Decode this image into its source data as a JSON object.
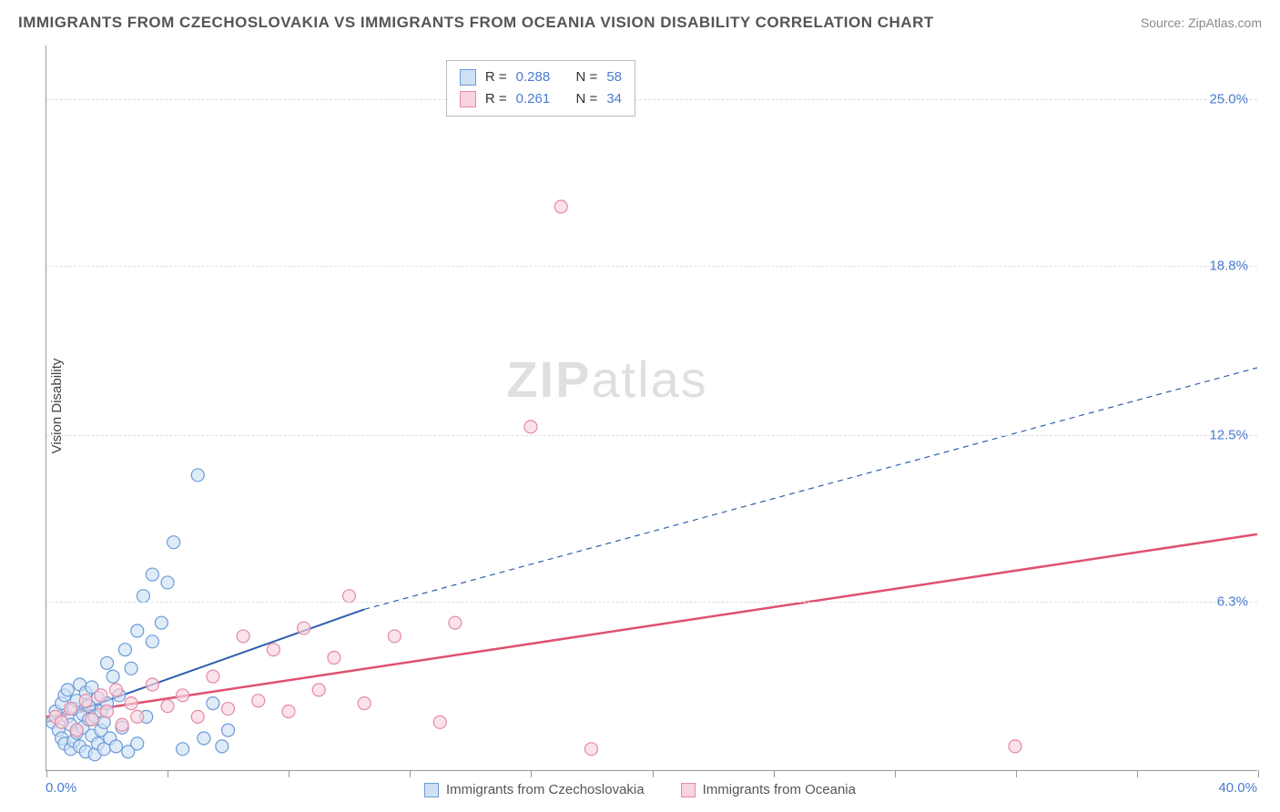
{
  "header": {
    "title": "IMMIGRANTS FROM CZECHOSLOVAKIA VS IMMIGRANTS FROM OCEANIA VISION DISABILITY CORRELATION CHART",
    "source": "Source: ZipAtlas.com"
  },
  "watermark": {
    "bold": "ZIP",
    "light": "atlas"
  },
  "chart": {
    "type": "scatter",
    "ylabel": "Vision Disability",
    "xlim": [
      0,
      40
    ],
    "ylim": [
      0,
      27
    ],
    "xaxis_min_label": "0.0%",
    "xaxis_max_label": "40.0%",
    "ytick_labels": [
      "6.3%",
      "12.5%",
      "18.8%",
      "25.0%"
    ],
    "ytick_values": [
      6.3,
      12.5,
      18.8,
      25.0
    ],
    "xtick_values": [
      0,
      4,
      8,
      12,
      16,
      20,
      24,
      28,
      32,
      36,
      40
    ],
    "background_color": "#ffffff",
    "grid_color": "#dddddd",
    "axis_color": "#999999",
    "label_color": "#4a7bd0",
    "point_radius": 7,
    "series": [
      {
        "name": "Immigrants from Czechoslovakia",
        "fill": "#cfe0f5",
        "stroke": "#6b9bd8",
        "fill_opacity": 0.65,
        "trend": {
          "x1": 0,
          "y1": 1.8,
          "x2": 10.5,
          "y2": 6.0,
          "x2_dash": 40,
          "y2_dash": 15.0,
          "stroke": "#2e5fb0",
          "width": 2
        },
        "points": [
          [
            0.2,
            1.8
          ],
          [
            0.3,
            2.2
          ],
          [
            0.4,
            1.5
          ],
          [
            0.5,
            2.5
          ],
          [
            0.5,
            1.2
          ],
          [
            0.6,
            2.8
          ],
          [
            0.6,
            1.0
          ],
          [
            0.7,
            2.0
          ],
          [
            0.7,
            3.0
          ],
          [
            0.8,
            1.7
          ],
          [
            0.8,
            0.8
          ],
          [
            0.9,
            2.3
          ],
          [
            0.9,
            1.1
          ],
          [
            1.0,
            2.6
          ],
          [
            1.0,
            1.4
          ],
          [
            1.1,
            3.2
          ],
          [
            1.1,
            0.9
          ],
          [
            1.2,
            2.1
          ],
          [
            1.2,
            1.6
          ],
          [
            1.3,
            2.9
          ],
          [
            1.3,
            0.7
          ],
          [
            1.4,
            1.9
          ],
          [
            1.4,
            2.4
          ],
          [
            1.5,
            1.3
          ],
          [
            1.5,
            3.1
          ],
          [
            1.6,
            2.0
          ],
          [
            1.6,
            0.6
          ],
          [
            1.7,
            2.7
          ],
          [
            1.7,
            1.0
          ],
          [
            1.8,
            1.5
          ],
          [
            1.8,
            2.2
          ],
          [
            1.9,
            0.8
          ],
          [
            1.9,
            1.8
          ],
          [
            2.0,
            2.5
          ],
          [
            2.0,
            4.0
          ],
          [
            2.1,
            1.2
          ],
          [
            2.2,
            3.5
          ],
          [
            2.3,
            0.9
          ],
          [
            2.4,
            2.8
          ],
          [
            2.5,
            1.6
          ],
          [
            2.6,
            4.5
          ],
          [
            2.7,
            0.7
          ],
          [
            2.8,
            3.8
          ],
          [
            3.0,
            5.2
          ],
          [
            3.0,
            1.0
          ],
          [
            3.2,
            6.5
          ],
          [
            3.3,
            2.0
          ],
          [
            3.5,
            7.3
          ],
          [
            3.5,
            4.8
          ],
          [
            3.8,
            5.5
          ],
          [
            4.0,
            7.0
          ],
          [
            4.2,
            8.5
          ],
          [
            4.5,
            0.8
          ],
          [
            5.0,
            11.0
          ],
          [
            5.2,
            1.2
          ],
          [
            5.5,
            2.5
          ],
          [
            5.8,
            0.9
          ],
          [
            6.0,
            1.5
          ]
        ]
      },
      {
        "name": "Immigrants from Oceania",
        "fill": "#f7d4de",
        "stroke": "#e48aa5",
        "fill_opacity": 0.65,
        "trend": {
          "x1": 0,
          "y1": 2.0,
          "x2": 40,
          "y2": 8.8,
          "stroke": "#e0506f",
          "width": 2.5
        },
        "points": [
          [
            0.3,
            2.0
          ],
          [
            0.5,
            1.8
          ],
          [
            0.8,
            2.3
          ],
          [
            1.0,
            1.5
          ],
          [
            1.3,
            2.6
          ],
          [
            1.5,
            1.9
          ],
          [
            1.8,
            2.8
          ],
          [
            2.0,
            2.2
          ],
          [
            2.3,
            3.0
          ],
          [
            2.5,
            1.7
          ],
          [
            2.8,
            2.5
          ],
          [
            3.0,
            2.0
          ],
          [
            3.5,
            3.2
          ],
          [
            4.0,
            2.4
          ],
          [
            4.5,
            2.8
          ],
          [
            5.0,
            2.0
          ],
          [
            5.5,
            3.5
          ],
          [
            6.0,
            2.3
          ],
          [
            6.5,
            5.0
          ],
          [
            7.0,
            2.6
          ],
          [
            7.5,
            4.5
          ],
          [
            8.0,
            2.2
          ],
          [
            8.5,
            5.3
          ],
          [
            9.0,
            3.0
          ],
          [
            9.5,
            4.2
          ],
          [
            10.0,
            6.5
          ],
          [
            10.5,
            2.5
          ],
          [
            11.5,
            5.0
          ],
          [
            13.0,
            1.8
          ],
          [
            13.5,
            5.5
          ],
          [
            16.0,
            12.8
          ],
          [
            18.0,
            0.8
          ],
          [
            17.0,
            21.0
          ],
          [
            32.0,
            0.9
          ]
        ]
      }
    ],
    "stats_box": {
      "top_pct": 2,
      "left_pct": 33,
      "rows": [
        {
          "swatch_fill": "#cfe0f5",
          "swatch_stroke": "#6b9bd8",
          "r_label": "R =",
          "r_value": "0.288",
          "n_label": "N =",
          "n_value": "58"
        },
        {
          "swatch_fill": "#f7d4de",
          "swatch_stroke": "#e48aa5",
          "r_label": "R =",
          "r_value": "0.261",
          "n_label": "N =",
          "n_value": "34"
        }
      ]
    },
    "legend": [
      {
        "swatch_fill": "#cfe0f5",
        "swatch_stroke": "#6b9bd8",
        "label": "Immigrants from Czechoslovakia"
      },
      {
        "swatch_fill": "#f7d4de",
        "swatch_stroke": "#e48aa5",
        "label": "Immigrants from Oceania"
      }
    ]
  }
}
